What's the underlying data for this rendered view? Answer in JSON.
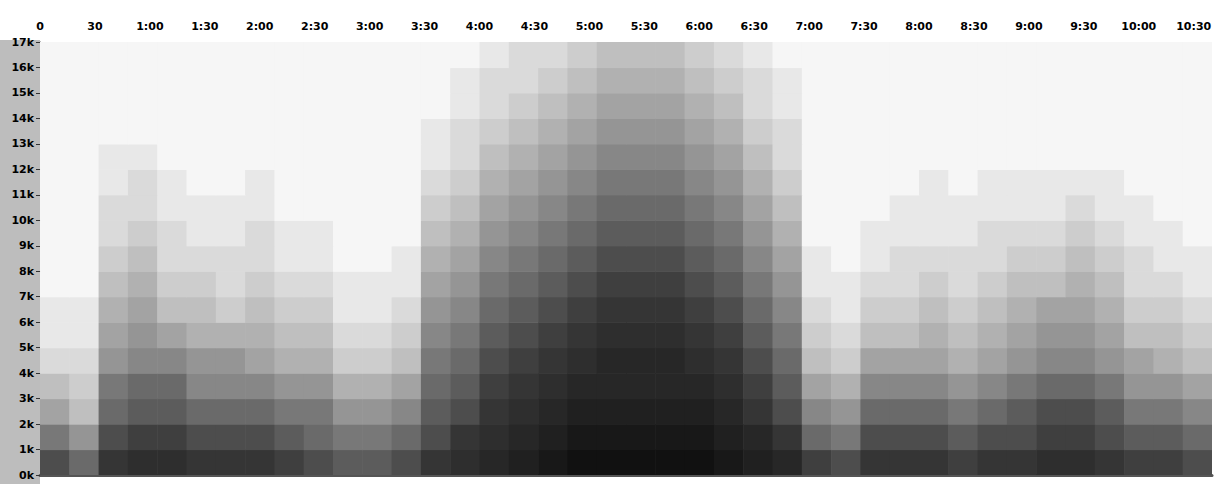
{
  "chart_data": {
    "type": "spectrogram",
    "xlim": [
      0,
      640
    ],
    "xticks": [
      0,
      30,
      {
        "value": 60,
        "label": "1:00"
      },
      {
        "value": 90,
        "label": "1:30"
      },
      {
        "value": 120,
        "label": "2:00"
      },
      {
        "value": 150,
        "label": "2:30"
      },
      {
        "value": 180,
        "label": "3:00"
      },
      {
        "value": 210,
        "label": "3:30"
      },
      {
        "value": 240,
        "label": "4:00"
      },
      {
        "value": 270,
        "label": "4:30"
      },
      {
        "value": 300,
        "label": "5:00"
      },
      {
        "value": 330,
        "label": "5:30"
      },
      {
        "value": 360,
        "label": "6:00"
      },
      {
        "value": 390,
        "label": "6:30"
      },
      {
        "value": 420,
        "label": "7:00"
      },
      {
        "value": 450,
        "label": "7:30"
      },
      {
        "value": 480,
        "label": "8:00"
      },
      {
        "value": 510,
        "label": "8:30"
      },
      {
        "value": 540,
        "label": "9:00"
      },
      {
        "value": 570,
        "label": "9:30"
      },
      {
        "value": 600,
        "label": "10:00"
      },
      {
        "value": 630,
        "label": "10:30"
      }
    ],
    "ylim": [
      0,
      17000
    ],
    "yticks": [
      {
        "value": 0,
        "label": "0k"
      },
      {
        "value": 1000,
        "label": "1k"
      },
      {
        "value": 2000,
        "label": "2k"
      },
      {
        "value": 3000,
        "label": "3k"
      },
      {
        "value": 4000,
        "label": "4k"
      },
      {
        "value": 5000,
        "label": "5k"
      },
      {
        "value": 6000,
        "label": "6k"
      },
      {
        "value": 7000,
        "label": "7k"
      },
      {
        "value": 8000,
        "label": "8k"
      },
      {
        "value": 9000,
        "label": "9k"
      },
      {
        "value": 10000,
        "label": "10k"
      },
      {
        "value": 11000,
        "label": "11k"
      },
      {
        "value": 12000,
        "label": "12k"
      },
      {
        "value": 13000,
        "label": "13k"
      },
      {
        "value": 14000,
        "label": "14k"
      },
      {
        "value": 15000,
        "label": "15k"
      },
      {
        "value": 16000,
        "label": "16k"
      },
      {
        "value": 17000,
        "label": "17k"
      }
    ],
    "time_bins": [
      0,
      16,
      32,
      48,
      64,
      80,
      96,
      112,
      128,
      144,
      160,
      176,
      192,
      208,
      224,
      240,
      256,
      272,
      288,
      304,
      320,
      336,
      352,
      368,
      384,
      400,
      416,
      432,
      448,
      464,
      480,
      496,
      512,
      528,
      544,
      560,
      576,
      592,
      608,
      624,
      640
    ],
    "freq_bins": [
      0,
      1000,
      2000,
      3000,
      4000,
      5000,
      6000,
      7000,
      8000,
      9000,
      10000,
      11000,
      12000,
      13000,
      14000,
      15000,
      16000,
      17000
    ],
    "intensity_range": [
      0,
      1
    ],
    "cells": [
      [
        0.6,
        0.5,
        0.7,
        0.75,
        0.75,
        0.7,
        0.7,
        0.7,
        0.65,
        0.6,
        0.55,
        0.55,
        0.6,
        0.7,
        0.75,
        0.8,
        0.85,
        0.9,
        0.95,
        0.95,
        0.95,
        0.95,
        0.95,
        0.9,
        0.85,
        0.8,
        0.65,
        0.6,
        0.7,
        0.7,
        0.7,
        0.65,
        0.7,
        0.7,
        0.75,
        0.75,
        0.7,
        0.65,
        0.65,
        0.6
      ],
      [
        0.45,
        0.35,
        0.6,
        0.65,
        0.65,
        0.6,
        0.6,
        0.6,
        0.55,
        0.5,
        0.45,
        0.45,
        0.5,
        0.6,
        0.7,
        0.75,
        0.8,
        0.85,
        0.9,
        0.9,
        0.9,
        0.9,
        0.9,
        0.85,
        0.8,
        0.7,
        0.5,
        0.45,
        0.6,
        0.6,
        0.6,
        0.55,
        0.6,
        0.6,
        0.65,
        0.65,
        0.6,
        0.55,
        0.55,
        0.5
      ],
      [
        0.3,
        0.2,
        0.5,
        0.55,
        0.55,
        0.5,
        0.5,
        0.5,
        0.45,
        0.45,
        0.35,
        0.35,
        0.4,
        0.55,
        0.6,
        0.7,
        0.75,
        0.8,
        0.85,
        0.85,
        0.85,
        0.85,
        0.85,
        0.8,
        0.7,
        0.6,
        0.4,
        0.35,
        0.5,
        0.5,
        0.5,
        0.45,
        0.5,
        0.55,
        0.6,
        0.6,
        0.55,
        0.45,
        0.45,
        0.4
      ],
      [
        0.2,
        0.15,
        0.45,
        0.5,
        0.5,
        0.4,
        0.4,
        0.4,
        0.35,
        0.35,
        0.25,
        0.25,
        0.3,
        0.5,
        0.55,
        0.65,
        0.7,
        0.75,
        0.8,
        0.8,
        0.8,
        0.8,
        0.8,
        0.75,
        0.65,
        0.55,
        0.3,
        0.25,
        0.4,
        0.4,
        0.4,
        0.35,
        0.4,
        0.45,
        0.5,
        0.5,
        0.45,
        0.35,
        0.35,
        0.3
      ],
      [
        0.1,
        0.1,
        0.35,
        0.4,
        0.4,
        0.35,
        0.35,
        0.3,
        0.25,
        0.25,
        0.15,
        0.15,
        0.2,
        0.45,
        0.5,
        0.6,
        0.65,
        0.7,
        0.75,
        0.8,
        0.8,
        0.8,
        0.75,
        0.7,
        0.6,
        0.5,
        0.2,
        0.15,
        0.3,
        0.3,
        0.3,
        0.25,
        0.3,
        0.35,
        0.4,
        0.4,
        0.35,
        0.3,
        0.25,
        0.2
      ],
      [
        0.05,
        0.05,
        0.3,
        0.35,
        0.3,
        0.25,
        0.25,
        0.25,
        0.2,
        0.2,
        0.1,
        0.1,
        0.15,
        0.4,
        0.45,
        0.55,
        0.6,
        0.65,
        0.7,
        0.75,
        0.75,
        0.75,
        0.7,
        0.65,
        0.55,
        0.45,
        0.15,
        0.1,
        0.2,
        0.2,
        0.25,
        0.2,
        0.25,
        0.3,
        0.35,
        0.35,
        0.3,
        0.2,
        0.2,
        0.15
      ],
      [
        0.05,
        0.05,
        0.25,
        0.3,
        0.2,
        0.2,
        0.15,
        0.2,
        0.15,
        0.15,
        0.05,
        0.05,
        0.1,
        0.35,
        0.4,
        0.5,
        0.55,
        0.6,
        0.65,
        0.7,
        0.7,
        0.7,
        0.65,
        0.6,
        0.5,
        0.4,
        0.1,
        0.05,
        0.15,
        0.15,
        0.2,
        0.15,
        0.2,
        0.25,
        0.3,
        0.3,
        0.25,
        0.15,
        0.15,
        0.1
      ],
      [
        0,
        0,
        0.2,
        0.25,
        0.15,
        0.15,
        0.1,
        0.15,
        0.1,
        0.1,
        0.05,
        0.05,
        0.05,
        0.3,
        0.35,
        0.45,
        0.5,
        0.55,
        0.6,
        0.65,
        0.65,
        0.65,
        0.6,
        0.55,
        0.45,
        0.35,
        0.05,
        0.05,
        0.1,
        0.1,
        0.15,
        0.1,
        0.15,
        0.2,
        0.2,
        0.25,
        0.2,
        0.1,
        0.1,
        0.05
      ],
      [
        0,
        0,
        0.15,
        0.2,
        0.1,
        0.1,
        0.1,
        0.1,
        0.05,
        0.05,
        0,
        0,
        0.05,
        0.25,
        0.3,
        0.4,
        0.45,
        0.5,
        0.55,
        0.6,
        0.6,
        0.6,
        0.55,
        0.5,
        0.4,
        0.3,
        0.05,
        0,
        0.05,
        0.1,
        0.1,
        0.1,
        0.1,
        0.15,
        0.15,
        0.2,
        0.15,
        0.1,
        0.05,
        0.05
      ],
      [
        0,
        0,
        0.1,
        0.15,
        0.1,
        0.05,
        0.05,
        0.1,
        0.05,
        0.05,
        0,
        0,
        0,
        0.2,
        0.25,
        0.35,
        0.4,
        0.45,
        0.5,
        0.55,
        0.55,
        0.55,
        0.5,
        0.45,
        0.35,
        0.25,
        0,
        0,
        0.05,
        0.05,
        0.05,
        0.05,
        0.1,
        0.1,
        0.1,
        0.15,
        0.1,
        0.05,
        0.05,
        0
      ],
      [
        0,
        0,
        0.1,
        0.1,
        0.05,
        0.05,
        0.05,
        0.05,
        0,
        0,
        0,
        0,
        0,
        0.15,
        0.2,
        0.3,
        0.35,
        0.4,
        0.45,
        0.5,
        0.5,
        0.5,
        0.45,
        0.4,
        0.3,
        0.2,
        0,
        0,
        0,
        0.05,
        0.05,
        0.05,
        0.05,
        0.05,
        0.05,
        0.1,
        0.05,
        0.05,
        0,
        0
      ],
      [
        0,
        0,
        0.05,
        0.1,
        0.05,
        0,
        0,
        0.05,
        0,
        0,
        0,
        0,
        0,
        0.1,
        0.15,
        0.25,
        0.3,
        0.35,
        0.4,
        0.45,
        0.45,
        0.45,
        0.4,
        0.35,
        0.25,
        0.15,
        0,
        0,
        0,
        0,
        0.05,
        0,
        0.05,
        0.05,
        0.05,
        0.05,
        0.05,
        0,
        0,
        0
      ],
      [
        0,
        0,
        0.05,
        0.05,
        0,
        0,
        0,
        0,
        0,
        0,
        0,
        0,
        0,
        0.05,
        0.1,
        0.2,
        0.25,
        0.3,
        0.35,
        0.4,
        0.4,
        0.4,
        0.35,
        0.3,
        0.2,
        0.1,
        0,
        0,
        0,
        0,
        0,
        0,
        0,
        0,
        0,
        0,
        0,
        0,
        0,
        0
      ],
      [
        0,
        0,
        0,
        0,
        0,
        0,
        0,
        0,
        0,
        0,
        0,
        0,
        0,
        0.05,
        0.1,
        0.15,
        0.2,
        0.25,
        0.3,
        0.35,
        0.35,
        0.35,
        0.3,
        0.25,
        0.15,
        0.1,
        0,
        0,
        0,
        0,
        0,
        0,
        0,
        0,
        0,
        0,
        0,
        0,
        0,
        0
      ],
      [
        0,
        0,
        0,
        0,
        0,
        0,
        0,
        0,
        0,
        0,
        0,
        0,
        0,
        0,
        0.05,
        0.1,
        0.15,
        0.2,
        0.25,
        0.3,
        0.3,
        0.3,
        0.25,
        0.2,
        0.1,
        0.05,
        0,
        0,
        0,
        0,
        0,
        0,
        0,
        0,
        0,
        0,
        0,
        0,
        0,
        0
      ],
      [
        0,
        0,
        0,
        0,
        0,
        0,
        0,
        0,
        0,
        0,
        0,
        0,
        0,
        0,
        0.05,
        0.1,
        0.1,
        0.15,
        0.2,
        0.25,
        0.25,
        0.25,
        0.2,
        0.15,
        0.1,
        0.05,
        0,
        0,
        0,
        0,
        0,
        0,
        0,
        0,
        0,
        0,
        0,
        0,
        0,
        0
      ],
      [
        0,
        0,
        0,
        0,
        0,
        0,
        0,
        0,
        0,
        0,
        0,
        0,
        0,
        0,
        0,
        0.05,
        0.1,
        0.1,
        0.15,
        0.2,
        0.2,
        0.2,
        0.15,
        0.1,
        0.05,
        0,
        0,
        0,
        0,
        0,
        0,
        0,
        0,
        0,
        0,
        0,
        0,
        0,
        0,
        0
      ]
    ]
  }
}
